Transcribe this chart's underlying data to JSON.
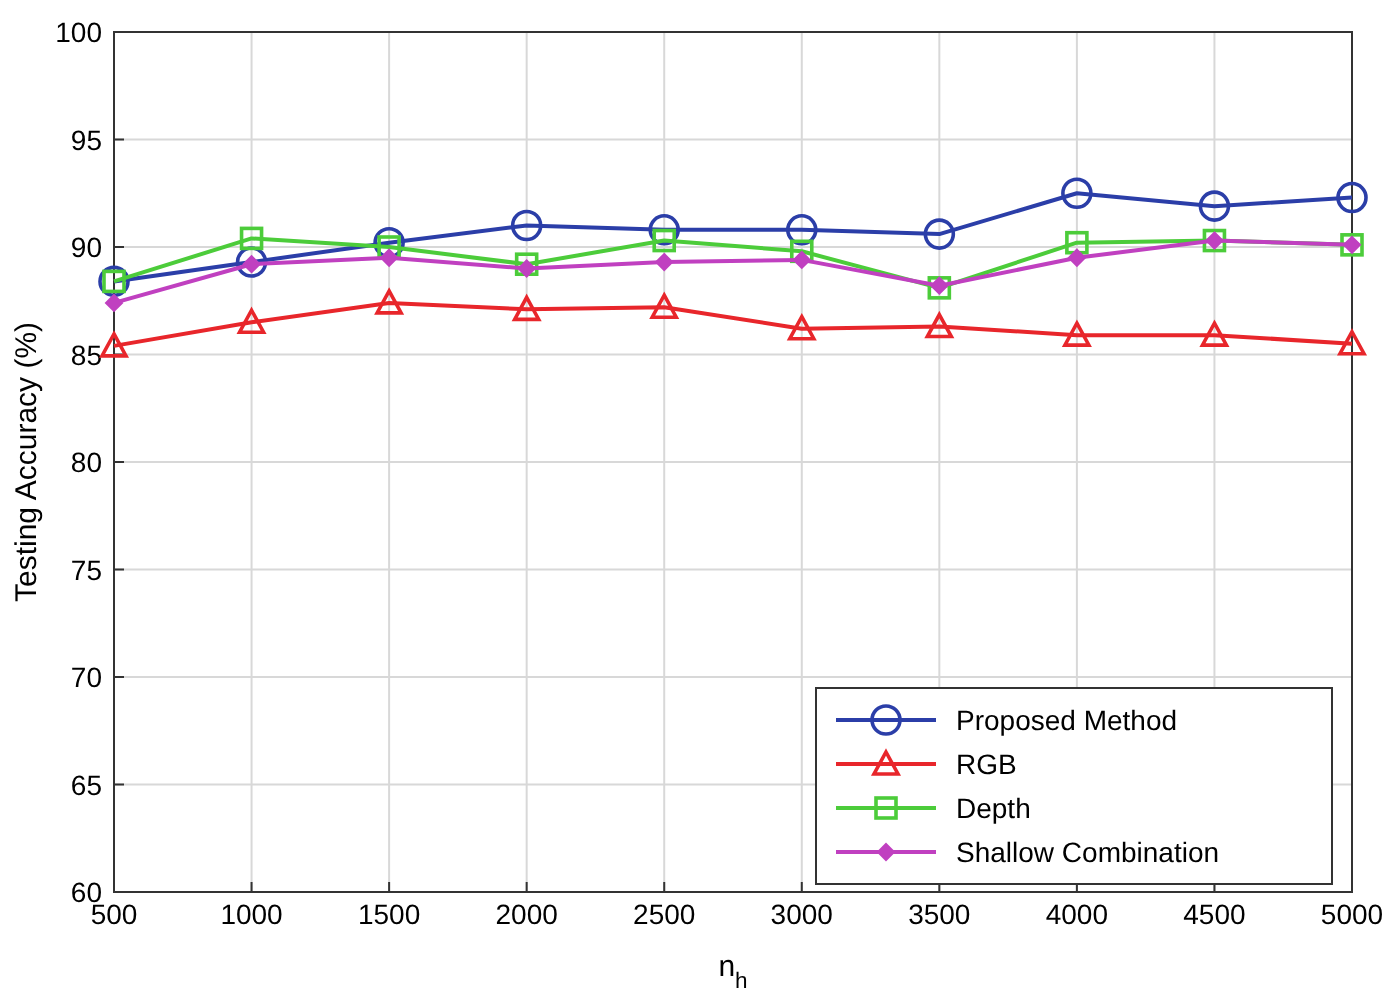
{
  "chart_data": {
    "type": "line",
    "xlabel": "n$_{h}$",
    "ylabel": "Testing Accuracy (%)",
    "x": [
      500,
      1000,
      1500,
      2000,
      2500,
      3000,
      3500,
      4000,
      4500,
      5000
    ],
    "xlim": [
      500,
      5000
    ],
    "xticks": [
      500,
      1000,
      1500,
      2000,
      2500,
      3000,
      3500,
      4000,
      4500,
      5000
    ],
    "ylim": [
      60,
      100
    ],
    "yticks": [
      60,
      65,
      70,
      75,
      80,
      85,
      90,
      95,
      100
    ],
    "grid": true,
    "legend": "bottom right",
    "series": [
      {
        "name": "Proposed Method",
        "color": "#2b3ea8",
        "marker": "circle",
        "values": [
          88.4,
          89.3,
          90.2,
          91.0,
          90.8,
          90.8,
          90.6,
          92.5,
          91.9,
          92.3
        ]
      },
      {
        "name": "RGB",
        "color": "#e8262b",
        "marker": "triangle",
        "values": [
          85.4,
          86.5,
          87.4,
          87.1,
          87.2,
          86.2,
          86.3,
          85.9,
          85.9,
          85.5
        ]
      },
      {
        "name": "Depth",
        "color": "#4ccc3a",
        "marker": "square",
        "values": [
          88.4,
          90.4,
          90.0,
          89.2,
          90.3,
          89.8,
          88.1,
          90.2,
          90.3,
          90.1
        ]
      },
      {
        "name": "Shallow Combination",
        "color": "#c040c0",
        "marker": "diamond",
        "values": [
          87.4,
          89.2,
          89.5,
          89.0,
          89.3,
          89.4,
          88.2,
          89.5,
          90.3,
          90.1
        ]
      }
    ]
  }
}
